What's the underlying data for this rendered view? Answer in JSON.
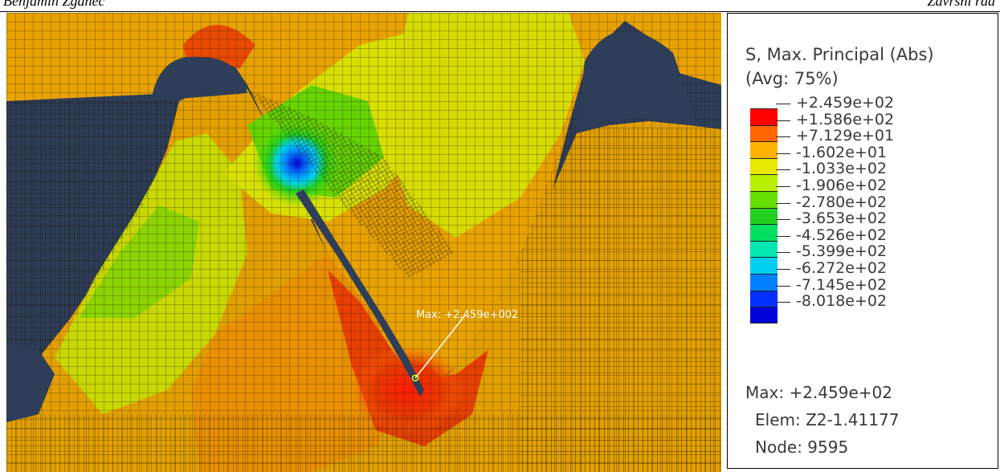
{
  "header": {
    "left": "Benjamin Zganec",
    "right": "Završni rad"
  },
  "viewport": {
    "max_marker_label": "Max: +2.459e+002",
    "colors": {
      "background": "#2e3d58",
      "mesh_line": "#1c1408"
    }
  },
  "legend": {
    "title_line1": "S, Max. Principal (Abs)",
    "title_line2": "(Avg: 75%)",
    "labels": [
      "+2.459e+02",
      "+1.586e+02",
      "+7.129e+01",
      "-1.602e+01",
      "-1.033e+02",
      "-1.906e+02",
      "-2.780e+02",
      "-3.653e+02",
      "-4.526e+02",
      "-5.399e+02",
      "-6.272e+02",
      "-7.145e+02",
      "-8.018e+02"
    ],
    "colors": [
      "#ff0000",
      "#ff6600",
      "#ffb300",
      "#e8e800",
      "#b8f000",
      "#66e000",
      "#22d020",
      "#00e060",
      "#00e8b0",
      "#00d0f0",
      "#0080ff",
      "#0030ff",
      "#0000d8"
    ],
    "max_line": "Max: +2.459e+02",
    "elem_line": "Elem: Z2-1.41177",
    "node_line": "Node: 9595"
  }
}
